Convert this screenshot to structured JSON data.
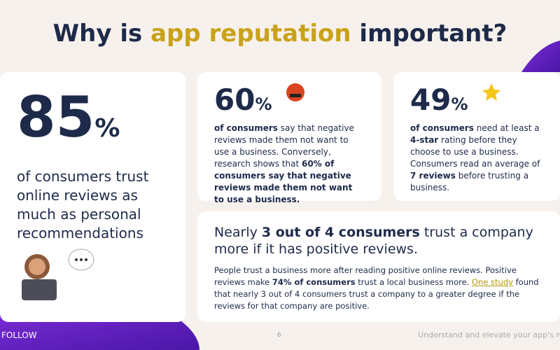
{
  "title": {
    "before": "Why is ",
    "highlight": "app reputation",
    "after": " important?"
  },
  "cards": [
    {
      "stat": "85",
      "unit": "%",
      "segments": [
        {
          "text": "of consumers trust online reviews as much as personal recommendations"
        }
      ]
    },
    {
      "stat": "60",
      "unit": "%",
      "segments": [
        {
          "text": "of consumers",
          "bold": true
        },
        {
          "text": " say that negative reviews made them not want to use a business. Conversely, research shows that "
        },
        {
          "text": "60% of consumers say that negative reviews made them not want to use a business.",
          "bold": true
        }
      ]
    },
    {
      "stat": "49",
      "unit": "%",
      "segments": [
        {
          "text": "of consumers",
          "bold": true
        },
        {
          "text": " need at least a "
        },
        {
          "text": "4-star",
          "bold": true
        },
        {
          "text": " rating before they choose to use a business. Consumers read an average of "
        },
        {
          "text": "7 reviews",
          "bold": true
        },
        {
          "text": " before trusting a business."
        }
      ]
    }
  ],
  "wide_card": {
    "heading": [
      {
        "text": "Nearly "
      },
      {
        "text": "3 out of 4 consumers",
        "bold": true
      },
      {
        "text": " trust a company more if it has positive reviews."
      }
    ],
    "body": [
      {
        "text": "People trust a business more after reading positive online reviews. Positive reviews make "
      },
      {
        "text": "74% of consumers",
        "bold": true
      },
      {
        "text": " trust a local business more. "
      },
      {
        "text": "One study",
        "link": true
      },
      {
        "text": " found that nearly 3 out of 4 consumers trust a company to a greater degree if the reviews for that company are positive."
      }
    ]
  },
  "footer": {
    "left": "FOLLOW",
    "page": "6",
    "right": "Understand and elevate your app's reput"
  }
}
